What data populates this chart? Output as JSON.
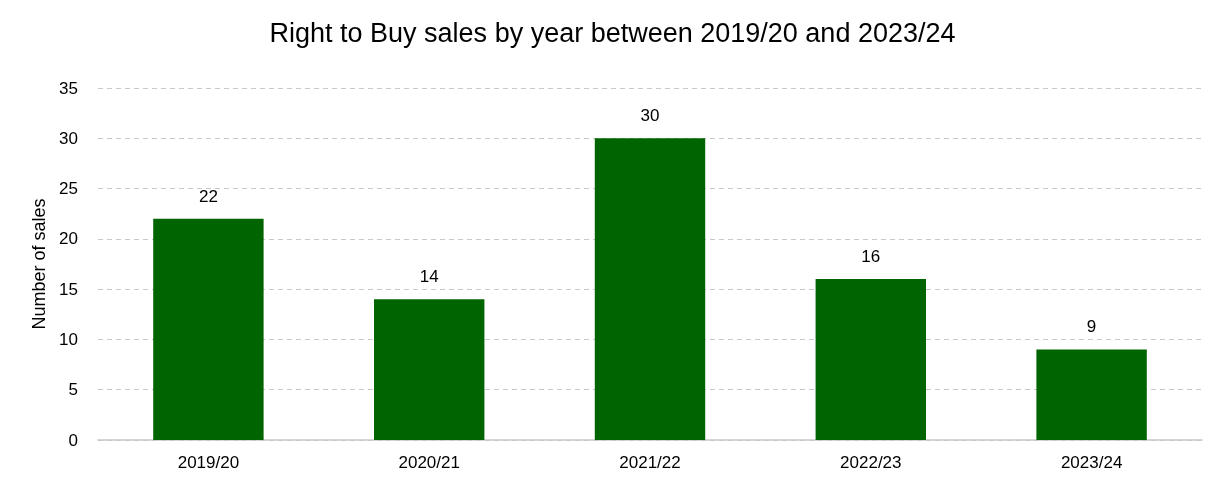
{
  "chart_data": {
    "type": "bar",
    "title": "Right to Buy sales by year between 2019/20 and 2023/24",
    "ylabel": "Number of sales",
    "categories": [
      "2019/20",
      "2020/21",
      "2021/22",
      "2022/23",
      "2023/24"
    ],
    "values": [
      22,
      14,
      30,
      16,
      9
    ],
    "color": "#006400",
    "ylim": [
      0,
      35
    ],
    "yticks": [
      0,
      5,
      10,
      15,
      20,
      25,
      30,
      35
    ],
    "grid": "y",
    "data_labels": true
  }
}
